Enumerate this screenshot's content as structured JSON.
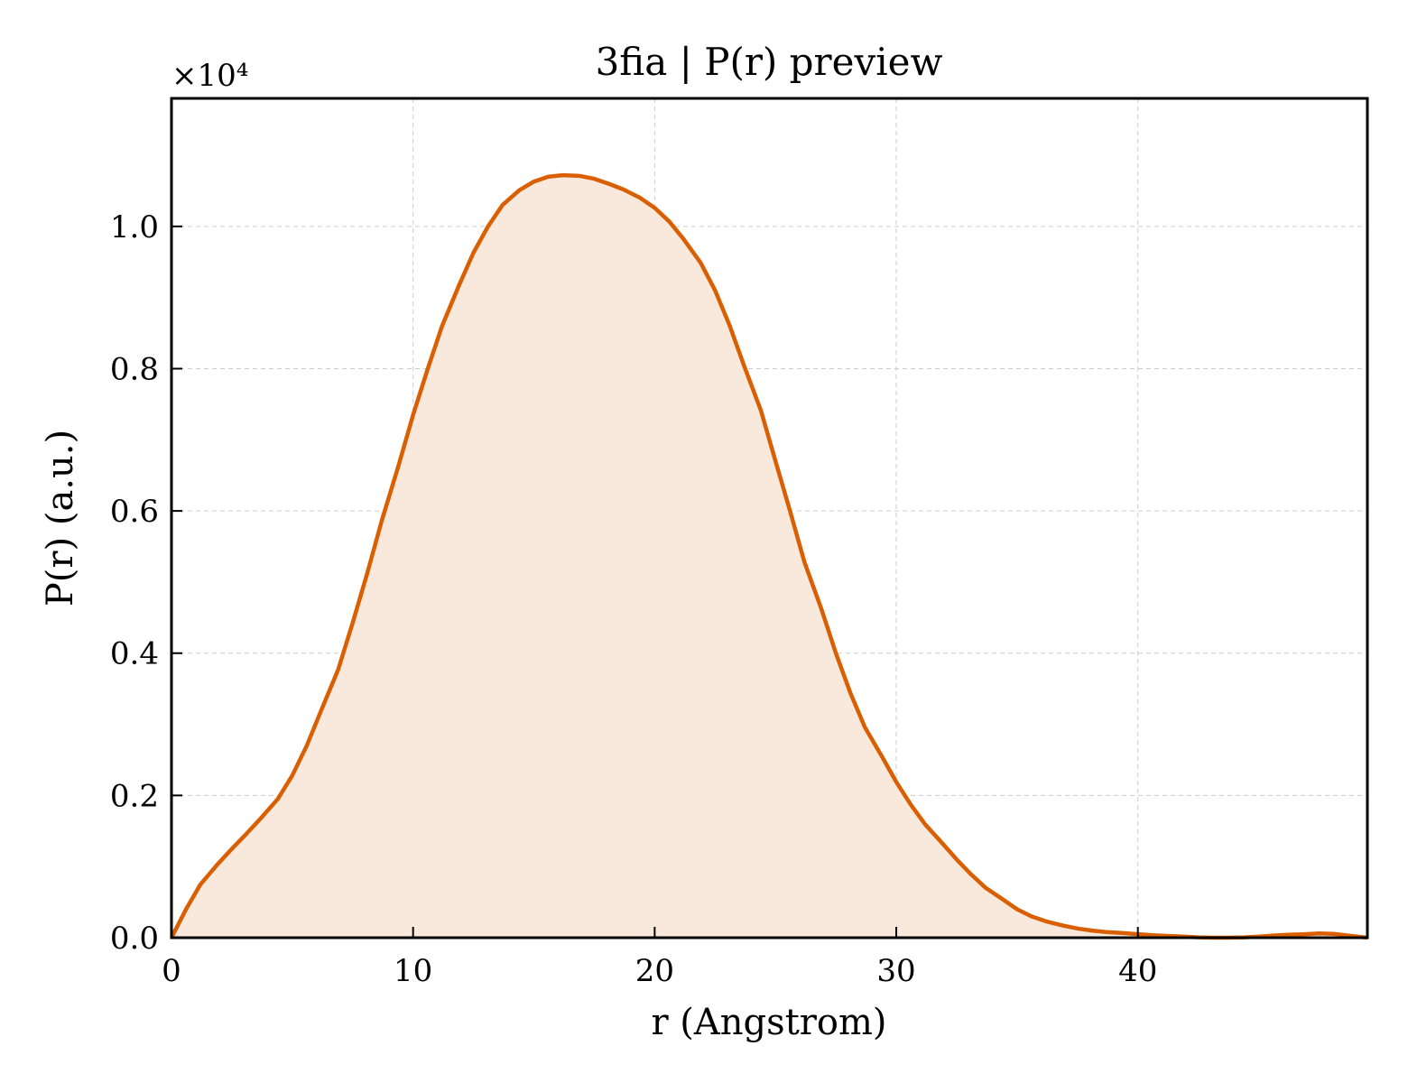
{
  "chart_data": {
    "type": "area",
    "title": "3fia | P(r) preview",
    "xlabel": "r (Angstrom)",
    "ylabel": "P(r) (a.u.)",
    "y_multiplier_label": "×10⁴",
    "y_multiplier": 10000,
    "xlim": [
      0,
      49.5
    ],
    "ylim": [
      0,
      11800
    ],
    "xticks": [
      0,
      10,
      20,
      30,
      40
    ],
    "yticks": [
      0,
      2000,
      4000,
      6000,
      8000,
      10000
    ],
    "ytick_labels": [
      "0.0",
      "0.2",
      "0.4",
      "0.6",
      "0.8",
      "1.0"
    ],
    "grid": true,
    "line_color": "#d95f02",
    "fill_color": "#f9e9dd",
    "series": [
      {
        "x": [
          0,
          0.6,
          1.2,
          1.9,
          2.5,
          3.1,
          3.7,
          4.4,
          5.0,
          5.6,
          6.2,
          6.9,
          7.5,
          8.1,
          8.7,
          9.4,
          10.0,
          10.6,
          11.2,
          11.9,
          12.5,
          13.1,
          13.7,
          14.4,
          15.0,
          15.6,
          16.2,
          16.9,
          17.5,
          18.1,
          18.7,
          19.4,
          20.0,
          20.6,
          21.2,
          21.9,
          22.5,
          23.1,
          23.7,
          24.4,
          25.0,
          25.6,
          26.2,
          26.9,
          27.5,
          28.1,
          28.7,
          29.4,
          30.0,
          30.6,
          31.2,
          31.9,
          32.5,
          33.1,
          33.7,
          34.4,
          35.0,
          35.6,
          36.2,
          36.9,
          37.5,
          38.1,
          38.7,
          39.4,
          40.0,
          40.6,
          41.2,
          41.9,
          42.5,
          43.1,
          43.7,
          44.4,
          45.0,
          45.6,
          46.2,
          46.9,
          47.5,
          48.1,
          48.7,
          49.5
        ],
        "y": [
          0,
          400,
          750,
          1030,
          1250,
          1460,
          1680,
          1950,
          2280,
          2700,
          3200,
          3770,
          4430,
          5120,
          5860,
          6640,
          7350,
          7990,
          8600,
          9170,
          9630,
          10000,
          10300,
          10510,
          10630,
          10700,
          10720,
          10710,
          10670,
          10600,
          10520,
          10400,
          10260,
          10070,
          9820,
          9490,
          9100,
          8610,
          8040,
          7410,
          6700,
          6000,
          5280,
          4620,
          4000,
          3440,
          2960,
          2550,
          2190,
          1870,
          1590,
          1330,
          1100,
          890,
          700,
          540,
          400,
          300,
          230,
          170,
          130,
          100,
          80,
          65,
          50,
          35,
          25,
          15,
          5,
          0,
          0,
          5,
          15,
          30,
          40,
          50,
          60,
          55,
          30,
          0
        ]
      }
    ]
  }
}
